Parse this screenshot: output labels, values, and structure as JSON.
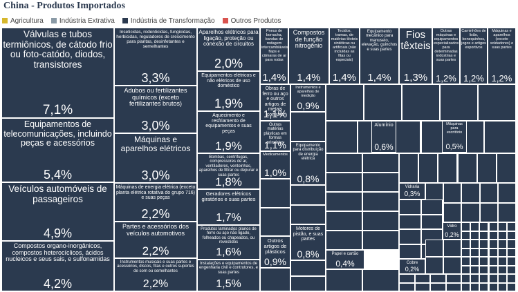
{
  "title": "China - Produtos Importados",
  "legend": [
    {
      "label": "Agricultura",
      "color": "#d6b72d"
    },
    {
      "label": "Indústria Extrativa",
      "color": "#8a9aa6"
    },
    {
      "label": "Indústria de Transformação",
      "color": "#2b3a4f"
    },
    {
      "label": "Outros Produtos",
      "color": "#d9534f"
    }
  ],
  "chart_data": {
    "type": "treemap",
    "unit": "%",
    "items": [
      {
        "label": "Válvulas e tubos termiônicos, de cátodo frio ou foto-catódo, diodos, transistores",
        "value_label": "7,1%",
        "value": 7.1
      },
      {
        "label": "Equipamentos de telecomunicações, incluindo peças e acessórios",
        "value_label": "5,4%",
        "value": 5.4
      },
      {
        "label": "Veículos automóveis de passageiros",
        "value_label": "4,9%",
        "value": 4.9
      },
      {
        "label": "Compostos organo-inorgânicos, compostos heterocíclicos, ácidos nucleicos e seus sais, e sulfonamidas",
        "value_label": "4,2%",
        "value": 4.2
      },
      {
        "label": "Inseticidas, rodenticidas, fungicidas, herbicidas, reguladores de crescimento para plantas, desinfetantes e semelhantes",
        "value_label": "3,3%",
        "value": 3.3
      },
      {
        "label": "Adubos ou fertilizantes químicos (exceto fertilizantes brutos)",
        "value_label": "3,0%",
        "value": 3.0
      },
      {
        "label": "Máquinas e aparelhos elétricos",
        "value_label": "3,0%",
        "value": 3.0
      },
      {
        "label": "Máquinas de energia elétrica (exceto planta elétrica rotativa do grupo 716) e suas peças",
        "value_label": "2,2%",
        "value": 2.2
      },
      {
        "label": "Partes e acessórios dos veículos automotivos",
        "value_label": "2,2%",
        "value": 2.2
      },
      {
        "label": "Instrumentos musicais e suas partes e acessórios, discos, fitas e outros suportes de som ou semelhantes",
        "value_label": "2,2%",
        "value": 2.2
      },
      {
        "label": "Aparelhos elétricos para ligação, proteção ou conexão de circuitos",
        "value_label": "2,0%",
        "value": 2.0
      },
      {
        "label": "Equipamentos elétricos e não elétricos de uso doméstico",
        "value_label": "1,9%",
        "value": 1.9
      },
      {
        "label": "Aquecimento e resfriamento de equipamentos e suas peças",
        "value_label": "1,9%",
        "value": 1.9
      },
      {
        "label": "Bombas, centrífugas, compressores de ar, ventiladores, ventoinhas, aparelhos de filtrar ou depurar e suas partes",
        "value_label": "1,8%",
        "value": 1.8
      },
      {
        "label": "Geradores elétricos giratórios e suas partes",
        "value_label": "1,7%",
        "value": 1.7
      },
      {
        "label": "Produtos laminados planos de ferro ou aço não ligado, folheados ou chapeados, ou revestidos",
        "value_label": "1,6%",
        "value": 1.6
      },
      {
        "label": "Instalações e equipamentos de engenharia civil e contrutores, e suas partes",
        "value_label": "1,5%",
        "value": 1.5
      },
      {
        "label": "Pneus de borracha, bandas de rodagem intercambiáveis, flaps e câmaras de ar para rodas",
        "value_label": "1,4%",
        "value": 1.4
      },
      {
        "label": "Compostos de função nitrogênio",
        "value_label": "1,4%",
        "value": 1.4
      },
      {
        "label": "Tecidos, tramas, de matérias têxteis sintéticas ou artificiais (não incluídas as fitas ou especiais)",
        "value_label": "1,4%",
        "value": 1.4
      },
      {
        "label": "Equipamento mecânico para manuseio, elevação, guinchos e suas partes",
        "value_label": "1,4%",
        "value": 1.4
      },
      {
        "label": "Fios têxteis",
        "value_label": "1,3%",
        "value": 1.3
      },
      {
        "label": "Outras máquinas e equipamentos especializados para determinadas indústrias e suas partes",
        "value_label": "1,2%",
        "value": 1.2
      },
      {
        "label": "Caminhões de lixão, bonequinhos, jogos e artigos esportivos",
        "value_label": "1,2%",
        "value": 1.2
      },
      {
        "label": "Máquinas e aparelhos (exceto soldadores) e suas partes",
        "value_label": "1,2%",
        "value": 1.2
      },
      {
        "label": "Obras de ferro ou aço e outros artigos de metais comuns",
        "value_label": "1,1%",
        "value": 1.1
      },
      {
        "label": "Outras matérias plásticas em formas primárias",
        "value_label": "1,1%",
        "value": 1.1
      },
      {
        "label": "Medicamentos",
        "value_label": "1,0%",
        "value": 1.0
      },
      {
        "label": "Instrumentos e aparelhos de medição",
        "value_label": "0,9%",
        "value": 0.9
      },
      {
        "label": "Equipamento para distribuição de energia elétrica",
        "value_label": "0,8%",
        "value": 0.8
      },
      {
        "label": "Motores de pistão, e suas partes",
        "value_label": "0,8%",
        "value": 0.8
      },
      {
        "label": "Outros artigos de plásticos",
        "value_label": "0,9%",
        "value": 0.9
      },
      {
        "label": "Papel e cartão",
        "value_label": "0,4%",
        "value": 0.4
      },
      {
        "label": "Alumínio",
        "value_label": "0,6%",
        "value": 0.6
      },
      {
        "label": "Vidraria",
        "value_label": "0,3%",
        "value": 0.3
      },
      {
        "label": "Vidro",
        "value_label": "0,2%",
        "value": 0.2
      },
      {
        "label": "Cobre",
        "value_label": "0,2%",
        "value": 0.2
      },
      {
        "label": "Máquinas para escritório",
        "value_label": "0,5%",
        "value": 0.5
      }
    ]
  }
}
